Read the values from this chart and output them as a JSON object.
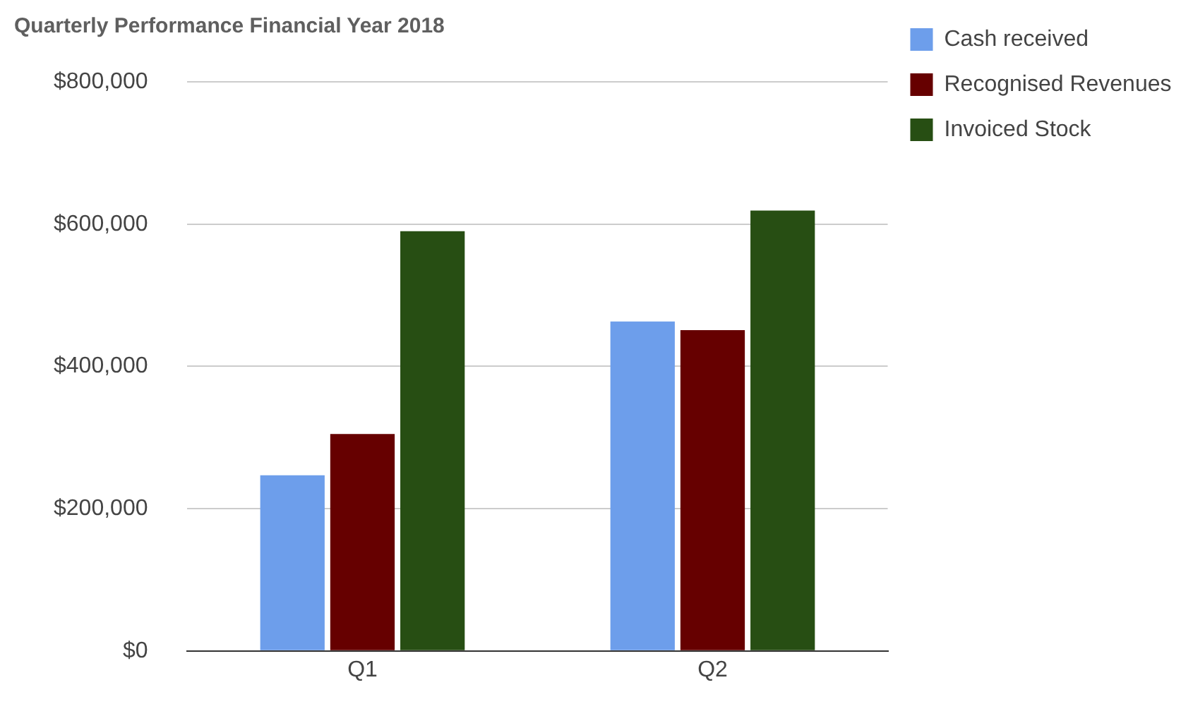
{
  "chart_data": {
    "type": "bar",
    "title": "Quarterly Performance Financial Year 2018",
    "categories": [
      "Q1",
      "Q2"
    ],
    "series": [
      {
        "name": "Cash received",
        "color": "#6d9eeb",
        "values": [
          247000,
          463000
        ]
      },
      {
        "name": "Recognised Revenues",
        "color": "#660000",
        "values": [
          305000,
          451000
        ]
      },
      {
        "name": "Invoiced Stock",
        "color": "#274e13",
        "values": [
          590000,
          619000
        ]
      }
    ],
    "ylim": [
      0,
      800000
    ],
    "yticks": [
      {
        "value": 0,
        "label": "$0"
      },
      {
        "value": 200000,
        "label": "$200,000"
      },
      {
        "value": 400000,
        "label": "$400,000"
      },
      {
        "value": 600000,
        "label": "$600,000"
      },
      {
        "value": 800000,
        "label": "$800,000"
      }
    ],
    "grid": "y",
    "legend": "right"
  }
}
